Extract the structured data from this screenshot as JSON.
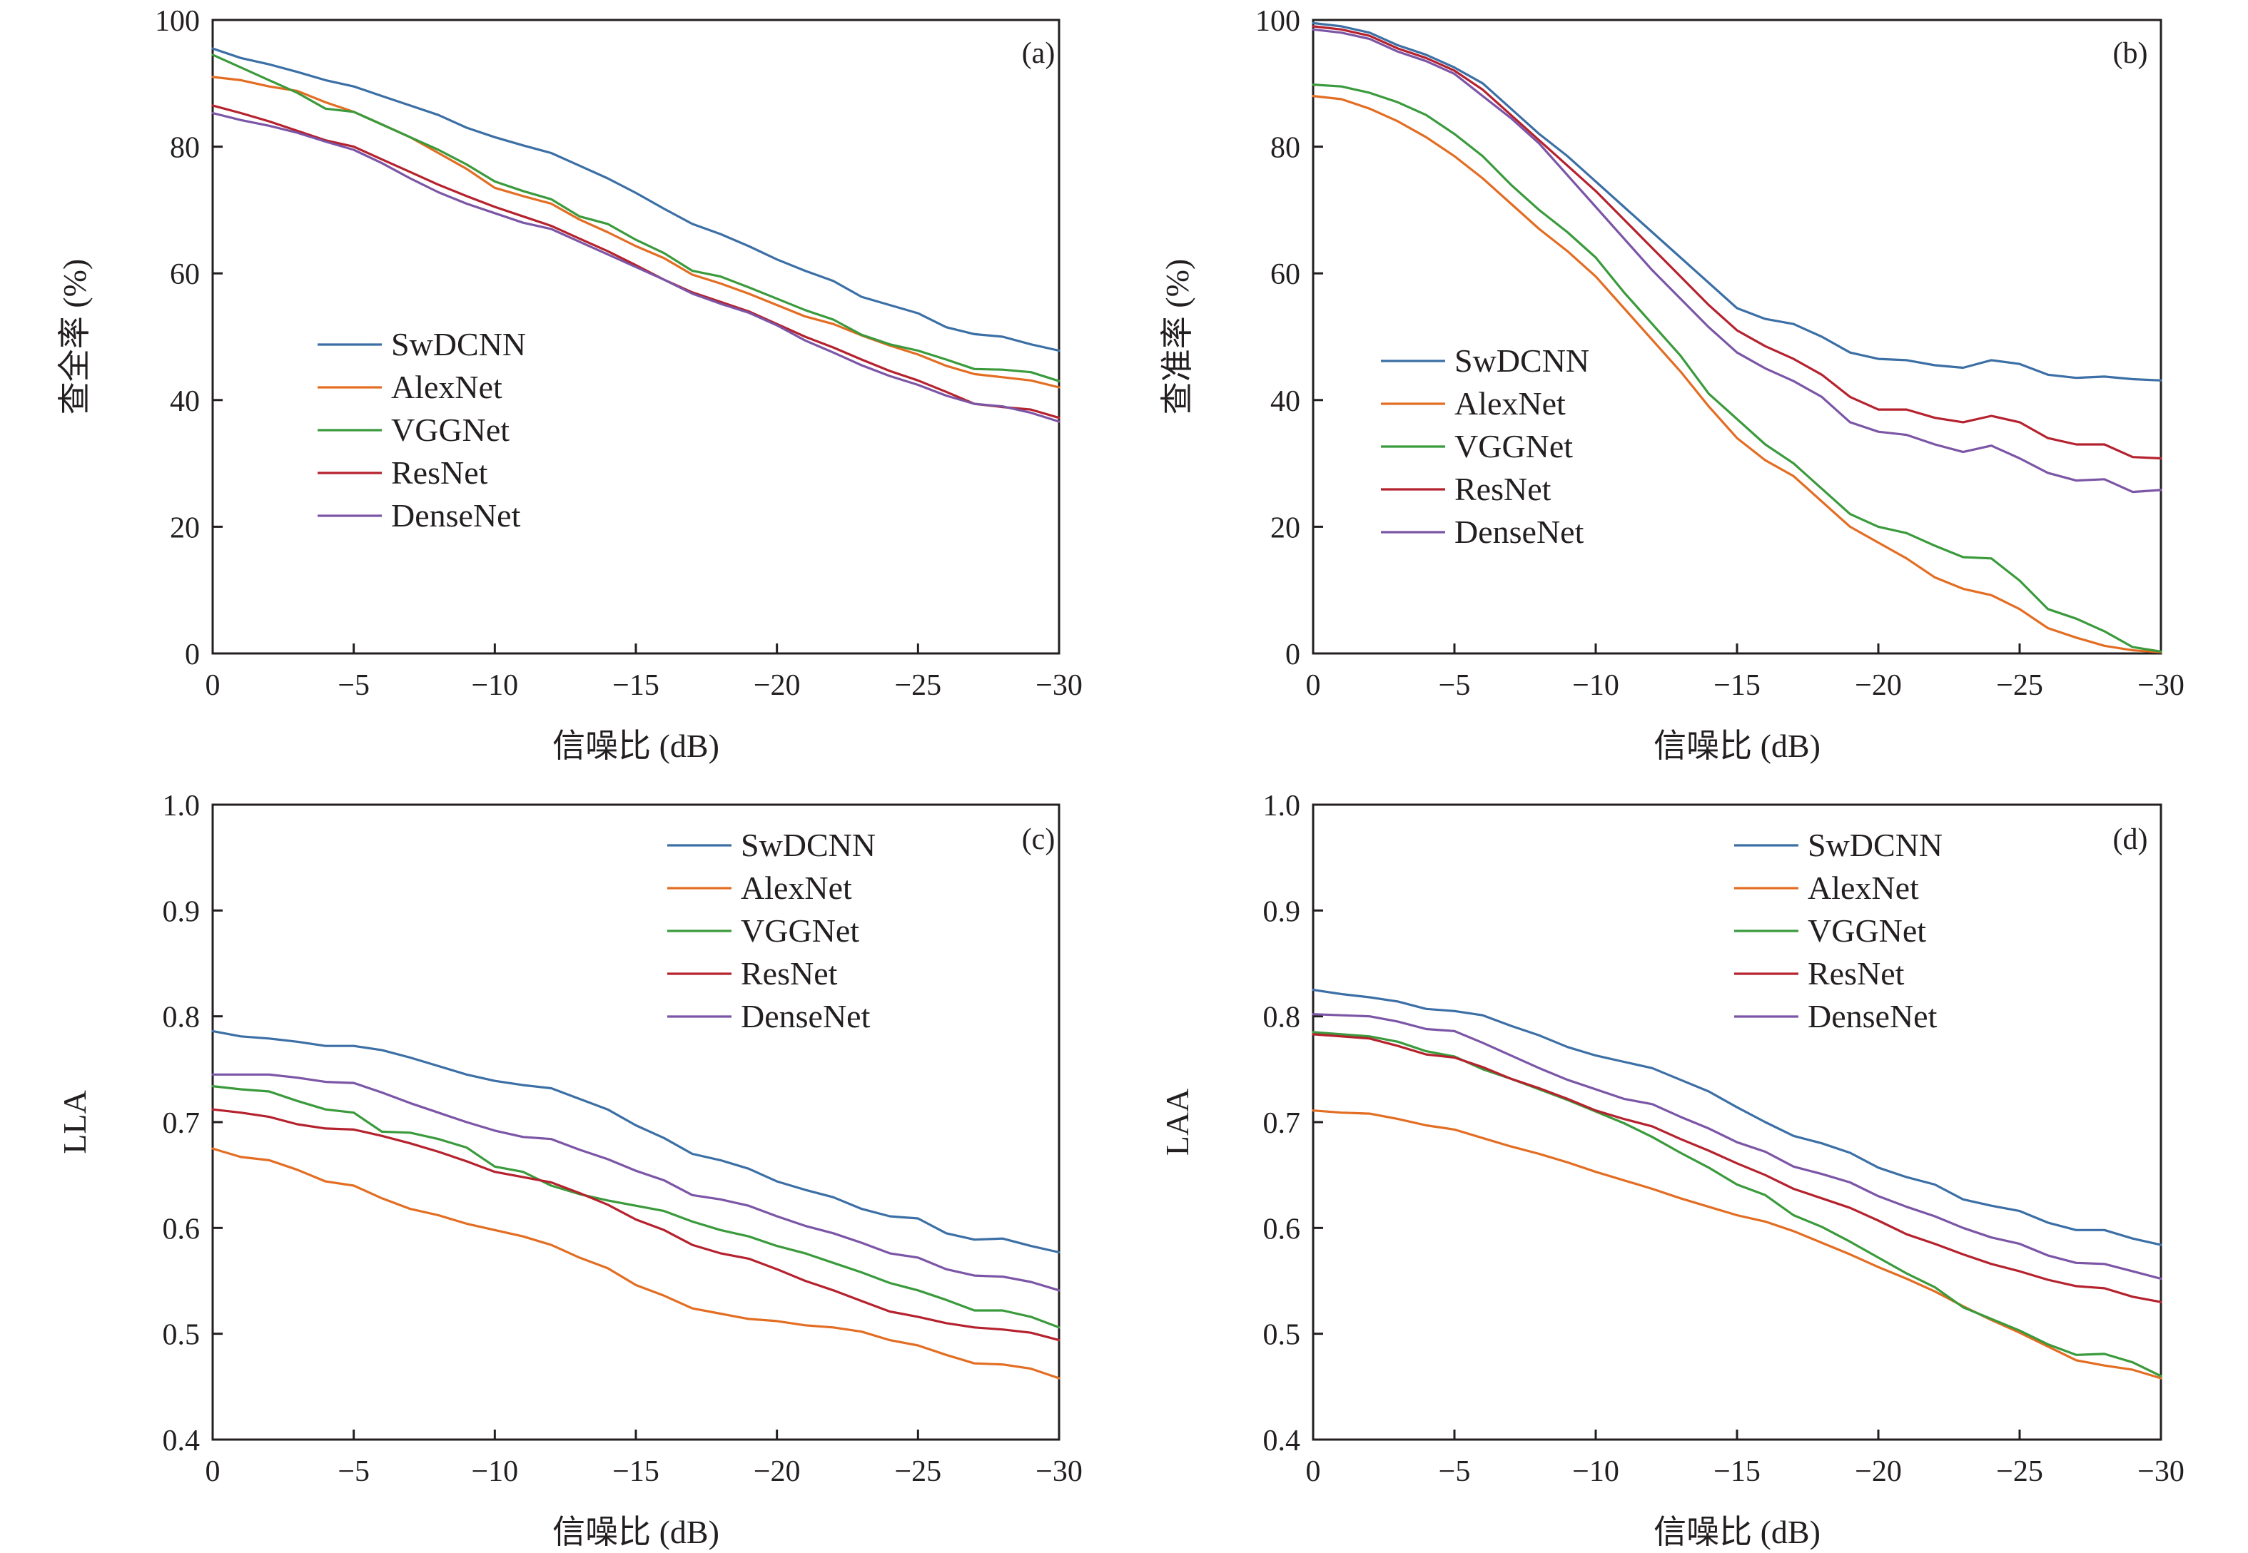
{
  "chart_data": [
    {
      "type": "line",
      "panel_label": "(a)",
      "xlabel": "信噪比 (dB)",
      "ylabel": "查全率 (%)",
      "x": [
        0,
        -1,
        -2,
        -3,
        -4,
        -5,
        -6,
        -7,
        -8,
        -9,
        -10,
        -11,
        -12,
        -13,
        -14,
        -15,
        -16,
        -17,
        -18,
        -19,
        -20,
        -21,
        -22,
        -23,
        -24,
        -25,
        -26,
        -27,
        -28,
        -29,
        -30
      ],
      "xlim": [
        0,
        -30
      ],
      "ylim": [
        0,
        100
      ],
      "xticks": [
        0,
        -5,
        -10,
        -15,
        -20,
        -25,
        -30
      ],
      "xtick_labels": [
        "0",
        "−5",
        "−10",
        "−15",
        "−20",
        "−25",
        "−30"
      ],
      "yticks": [
        0,
        20,
        40,
        60,
        80,
        100
      ],
      "ytick_labels": [
        "0",
        "20",
        "40",
        "60",
        "80",
        "100"
      ],
      "legend_position": "center-left",
      "series": [
        {
          "name": "SwDCNN",
          "color": "#3b6fa5",
          "values": [
            95.5,
            94,
            93,
            91.8,
            90.5,
            89.5,
            88,
            86.5,
            85,
            83,
            81.5,
            80.2,
            79,
            77,
            75,
            72.7,
            70.2,
            67.8,
            66.2,
            64.3,
            62.2,
            60.4,
            58.8,
            56.3,
            55,
            53.7,
            51.5,
            50.4,
            50,
            48.8,
            47.8
          ]
        },
        {
          "name": "AlexNet",
          "color": "#e36d22",
          "values": [
            91,
            90.5,
            89.5,
            88.8,
            87,
            85.5,
            83.5,
            81.5,
            79,
            76.5,
            73.5,
            72.2,
            71,
            68.5,
            66.5,
            64.3,
            62.4,
            59.8,
            58.4,
            56.8,
            55,
            53.2,
            52,
            50.2,
            48.6,
            47.2,
            45.4,
            44.1,
            43.6,
            43.1,
            42
          ]
        },
        {
          "name": "VGGNet",
          "color": "#3a9a3c",
          "values": [
            94.5,
            92.5,
            90.5,
            88.5,
            86,
            85.5,
            83.5,
            81.5,
            79.5,
            77.2,
            74.5,
            73,
            71.7,
            69,
            67.8,
            65.3,
            63.2,
            60.4,
            59.5,
            57.8,
            56,
            54.2,
            52.7,
            50.3,
            48.8,
            47.8,
            46.4,
            44.9,
            44.8,
            44.4,
            43
          ]
        },
        {
          "name": "ResNet",
          "color": "#b5222e",
          "values": [
            86.5,
            85.3,
            84,
            82.5,
            81,
            80,
            78,
            76,
            74,
            72.2,
            70.5,
            69,
            67.5,
            65.5,
            63.5,
            61.3,
            59,
            57,
            55.5,
            54,
            52,
            50,
            48.3,
            46.4,
            44.6,
            43.1,
            41.3,
            39.4,
            38.9,
            38.5,
            37.2
          ]
        },
        {
          "name": "DenseNet",
          "color": "#7b55a6",
          "values": [
            85.3,
            84.2,
            83.3,
            82.2,
            80.8,
            79.5,
            77.4,
            75,
            72.8,
            71,
            69.5,
            68,
            67,
            65,
            63,
            61,
            59,
            56.8,
            55.2,
            53.8,
            51.8,
            49.4,
            47.5,
            45.5,
            43.8,
            42.4,
            40.7,
            39.4,
            39,
            38,
            36.6
          ]
        }
      ]
    },
    {
      "type": "line",
      "panel_label": "(b)",
      "xlabel": "信噪比 (dB)",
      "ylabel": "查准率 (%)",
      "x": [
        0,
        -1,
        -2,
        -3,
        -4,
        -5,
        -6,
        -7,
        -8,
        -9,
        -10,
        -11,
        -12,
        -13,
        -14,
        -15,
        -16,
        -17,
        -18,
        -19,
        -20,
        -21,
        -22,
        -23,
        -24,
        -25,
        -26,
        -27,
        -28,
        -29,
        -30
      ],
      "xlim": [
        0,
        -30
      ],
      "ylim": [
        0,
        100
      ],
      "xticks": [
        0,
        -5,
        -10,
        -15,
        -20,
        -25,
        -30
      ],
      "xtick_labels": [
        "0",
        "−5",
        "−10",
        "−15",
        "−20",
        "−25",
        "−30"
      ],
      "yticks": [
        0,
        20,
        40,
        60,
        80,
        100
      ],
      "ytick_labels": [
        "0",
        "20",
        "40",
        "60",
        "80",
        "100"
      ],
      "legend_position": "center-left",
      "series": [
        {
          "name": "SwDCNN",
          "color": "#3b6fa5",
          "values": [
            99.5,
            99,
            98,
            96,
            94.5,
            92.5,
            90,
            86,
            82,
            78.5,
            74.5,
            70.5,
            66.5,
            62.5,
            58.5,
            54.5,
            52.8,
            52,
            50,
            47.5,
            46.5,
            46.3,
            45.5,
            45.1,
            46.3,
            45.7,
            44,
            43.5,
            43.7,
            43.3,
            43.1
          ]
        },
        {
          "name": "AlexNet",
          "color": "#e36d22",
          "values": [
            88,
            87.5,
            86,
            84,
            81.5,
            78.5,
            75,
            71,
            67,
            63.5,
            59.5,
            54.5,
            49.5,
            44.5,
            39,
            34,
            30.5,
            28,
            24,
            20,
            17.5,
            15,
            12,
            10.2,
            9.2,
            7,
            4,
            2.5,
            1.2,
            0.5,
            0.2
          ]
        },
        {
          "name": "VGGNet",
          "color": "#3a9a3c",
          "values": [
            89.8,
            89.5,
            88.5,
            87,
            85,
            82,
            78.5,
            74,
            70,
            66.5,
            62.5,
            57,
            52,
            47,
            41,
            37,
            33,
            30,
            26,
            22,
            20,
            19,
            17,
            15.2,
            15,
            11.5,
            7,
            5.5,
            3.5,
            1,
            0.3
          ]
        },
        {
          "name": "ResNet",
          "color": "#b5222e",
          "values": [
            99,
            98.5,
            97.5,
            95.5,
            94,
            92,
            89,
            85,
            81,
            77,
            73,
            68.5,
            64,
            59.5,
            55,
            51,
            48.5,
            46.5,
            44,
            40.5,
            38.5,
            38.5,
            37.2,
            36.5,
            37.5,
            36.5,
            34,
            33,
            33,
            31,
            30.8
          ]
        },
        {
          "name": "DenseNet",
          "color": "#7b55a6",
          "values": [
            98.5,
            98,
            97,
            95,
            93.5,
            91.5,
            88,
            84.5,
            80.5,
            75.5,
            70.5,
            65.5,
            60.5,
            56,
            51.5,
            47.5,
            45,
            43,
            40.5,
            36.5,
            35,
            34.5,
            33,
            31.8,
            32.8,
            30.8,
            28.5,
            27.3,
            27.5,
            25.5,
            25.8
          ]
        }
      ]
    },
    {
      "type": "line",
      "panel_label": "(c)",
      "xlabel": "信噪比 (dB)",
      "ylabel": "LLA",
      "x": [
        0,
        -1,
        -2,
        -3,
        -4,
        -5,
        -6,
        -7,
        -8,
        -9,
        -10,
        -11,
        -12,
        -13,
        -14,
        -15,
        -16,
        -17,
        -18,
        -19,
        -20,
        -21,
        -22,
        -23,
        -24,
        -25,
        -26,
        -27,
        -28,
        -29,
        -30
      ],
      "xlim": [
        0,
        -30
      ],
      "ylim": [
        0.4,
        1.0
      ],
      "xticks": [
        0,
        -5,
        -10,
        -15,
        -20,
        -25,
        -30
      ],
      "xtick_labels": [
        "0",
        "−5",
        "−10",
        "−15",
        "−20",
        "−25",
        "−30"
      ],
      "yticks": [
        0.4,
        0.5,
        0.6,
        0.7,
        0.8,
        0.9,
        1.0
      ],
      "ytick_labels": [
        "0.4",
        "0.5",
        "0.6",
        "0.7",
        "0.8",
        "0.9",
        "1.0"
      ],
      "legend_position": "top-right",
      "series": [
        {
          "name": "SwDCNN",
          "color": "#3b6fa5",
          "values": [
            0.786,
            0.781,
            0.779,
            0.776,
            0.772,
            0.772,
            0.768,
            0.761,
            0.753,
            0.745,
            0.739,
            0.735,
            0.732,
            0.722,
            0.712,
            0.697,
            0.685,
            0.67,
            0.664,
            0.656,
            0.644,
            0.636,
            0.629,
            0.618,
            0.611,
            0.609,
            0.595,
            0.589,
            0.59,
            0.583,
            0.577
          ]
        },
        {
          "name": "AlexNet",
          "color": "#e36d22",
          "values": [
            0.675,
            0.667,
            0.664,
            0.655,
            0.644,
            0.64,
            0.628,
            0.618,
            0.612,
            0.604,
            0.598,
            0.592,
            0.584,
            0.572,
            0.562,
            0.546,
            0.536,
            0.524,
            0.519,
            0.514,
            0.512,
            0.508,
            0.506,
            0.502,
            0.494,
            0.489,
            0.48,
            0.472,
            0.471,
            0.467,
            0.458
          ]
        },
        {
          "name": "VGGNet",
          "color": "#3a9a3c",
          "values": [
            0.734,
            0.731,
            0.729,
            0.72,
            0.712,
            0.709,
            0.691,
            0.69,
            0.684,
            0.676,
            0.658,
            0.653,
            0.64,
            0.632,
            0.626,
            0.621,
            0.616,
            0.606,
            0.598,
            0.592,
            0.583,
            0.576,
            0.567,
            0.558,
            0.548,
            0.541,
            0.532,
            0.522,
            0.522,
            0.516,
            0.506
          ]
        },
        {
          "name": "ResNet",
          "color": "#b5222e",
          "values": [
            0.712,
            0.709,
            0.705,
            0.698,
            0.694,
            0.693,
            0.687,
            0.68,
            0.672,
            0.663,
            0.653,
            0.648,
            0.643,
            0.633,
            0.622,
            0.608,
            0.598,
            0.584,
            0.576,
            0.571,
            0.561,
            0.55,
            0.541,
            0.531,
            0.521,
            0.516,
            0.51,
            0.506,
            0.504,
            0.501,
            0.494
          ]
        },
        {
          "name": "DenseNet",
          "color": "#7b55a6",
          "values": [
            0.745,
            0.745,
            0.745,
            0.742,
            0.738,
            0.737,
            0.728,
            0.718,
            0.709,
            0.7,
            0.692,
            0.686,
            0.684,
            0.674,
            0.665,
            0.654,
            0.645,
            0.631,
            0.627,
            0.621,
            0.611,
            0.602,
            0.595,
            0.586,
            0.576,
            0.572,
            0.561,
            0.555,
            0.554,
            0.549,
            0.541
          ]
        }
      ]
    },
    {
      "type": "line",
      "panel_label": "(d)",
      "xlabel": "信噪比 (dB)",
      "ylabel": "LAA",
      "x": [
        0,
        -1,
        -2,
        -3,
        -4,
        -5,
        -6,
        -7,
        -8,
        -9,
        -10,
        -11,
        -12,
        -13,
        -14,
        -15,
        -16,
        -17,
        -18,
        -19,
        -20,
        -21,
        -22,
        -23,
        -24,
        -25,
        -26,
        -27,
        -28,
        -29,
        -30
      ],
      "xlim": [
        0,
        -30
      ],
      "ylim": [
        0.4,
        1.0
      ],
      "xticks": [
        0,
        -5,
        -10,
        -15,
        -20,
        -25,
        -30
      ],
      "xtick_labels": [
        "0",
        "−5",
        "−10",
        "−15",
        "−20",
        "−25",
        "−30"
      ],
      "yticks": [
        0.4,
        0.5,
        0.6,
        0.7,
        0.8,
        0.9,
        1.0
      ],
      "ytick_labels": [
        "0.4",
        "0.5",
        "0.6",
        "0.7",
        "0.8",
        "0.9",
        "1.0"
      ],
      "legend_position": "top-right",
      "series": [
        {
          "name": "SwDCNN",
          "color": "#3b6fa5",
          "values": [
            0.825,
            0.821,
            0.818,
            0.814,
            0.807,
            0.805,
            0.801,
            0.791,
            0.782,
            0.771,
            0.763,
            0.757,
            0.751,
            0.74,
            0.729,
            0.714,
            0.7,
            0.687,
            0.68,
            0.671,
            0.657,
            0.648,
            0.641,
            0.627,
            0.621,
            0.616,
            0.605,
            0.598,
            0.598,
            0.59,
            0.584
          ]
        },
        {
          "name": "AlexNet",
          "color": "#e36d22",
          "values": [
            0.711,
            0.709,
            0.708,
            0.703,
            0.697,
            0.693,
            0.685,
            0.677,
            0.67,
            0.662,
            0.653,
            0.645,
            0.637,
            0.628,
            0.62,
            0.612,
            0.606,
            0.597,
            0.586,
            0.575,
            0.563,
            0.552,
            0.54,
            0.526,
            0.513,
            0.501,
            0.488,
            0.475,
            0.47,
            0.466,
            0.458
          ]
        },
        {
          "name": "VGGNet",
          "color": "#3a9a3c",
          "values": [
            0.785,
            0.783,
            0.781,
            0.776,
            0.767,
            0.762,
            0.75,
            0.741,
            0.731,
            0.721,
            0.71,
            0.699,
            0.686,
            0.671,
            0.657,
            0.641,
            0.631,
            0.612,
            0.601,
            0.587,
            0.572,
            0.557,
            0.544,
            0.525,
            0.514,
            0.503,
            0.49,
            0.48,
            0.481,
            0.473,
            0.46
          ]
        },
        {
          "name": "ResNet",
          "color": "#b5222e",
          "values": [
            0.783,
            0.781,
            0.779,
            0.772,
            0.764,
            0.761,
            0.752,
            0.741,
            0.732,
            0.722,
            0.711,
            0.703,
            0.696,
            0.684,
            0.673,
            0.661,
            0.65,
            0.637,
            0.628,
            0.619,
            0.607,
            0.594,
            0.585,
            0.575,
            0.566,
            0.559,
            0.551,
            0.545,
            0.543,
            0.535,
            0.53
          ]
        },
        {
          "name": "DenseNet",
          "color": "#7b55a6",
          "values": [
            0.802,
            0.801,
            0.8,
            0.795,
            0.788,
            0.786,
            0.775,
            0.763,
            0.751,
            0.74,
            0.731,
            0.722,
            0.717,
            0.705,
            0.694,
            0.681,
            0.672,
            0.658,
            0.651,
            0.643,
            0.63,
            0.62,
            0.611,
            0.6,
            0.591,
            0.585,
            0.574,
            0.567,
            0.566,
            0.559,
            0.552
          ]
        }
      ]
    }
  ]
}
